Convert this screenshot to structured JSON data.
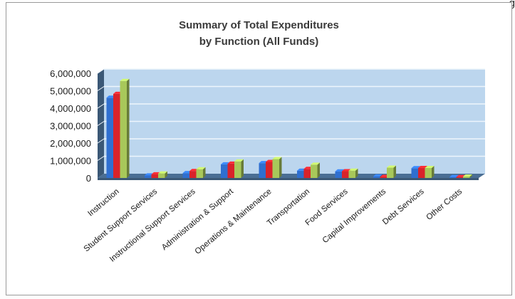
{
  "page_marker": "g",
  "chart_data": {
    "type": "bar",
    "title_lines": [
      "Summary of Total Expenditures",
      "by Function (All Funds)"
    ],
    "categories": [
      "Instruction",
      "Student Support Services",
      "Instructional Support Services",
      "Administration & Support",
      "Operations & Maintenance",
      "Transportation",
      "Food Services",
      "Capital Improvements",
      "Debt Services",
      "Other Costs"
    ],
    "series": [
      {
        "color": "#2f6fd0",
        "values": [
          4600000,
          150000,
          280000,
          780000,
          850000,
          420000,
          380000,
          90000,
          560000,
          50000
        ]
      },
      {
        "color": "#d9232a",
        "values": [
          4820000,
          210000,
          400000,
          820000,
          920000,
          520000,
          390000,
          60000,
          570000,
          50000
        ]
      },
      {
        "color": "#a8c85a",
        "values": [
          5560000,
          260000,
          500000,
          950000,
          1080000,
          760000,
          420000,
          590000,
          570000,
          80000
        ]
      }
    ],
    "yticks": [
      "6,000,000",
      "5,000,000",
      "4,000,000",
      "3,000,000",
      "2,000,000",
      "1,000,000",
      "0"
    ],
    "ylim": [
      0,
      6000000
    ],
    "grid": true,
    "legend": "none",
    "colors": {
      "wall": "#bcd6ee",
      "floor": "#3b5876",
      "grid": "#eef5fc"
    }
  }
}
